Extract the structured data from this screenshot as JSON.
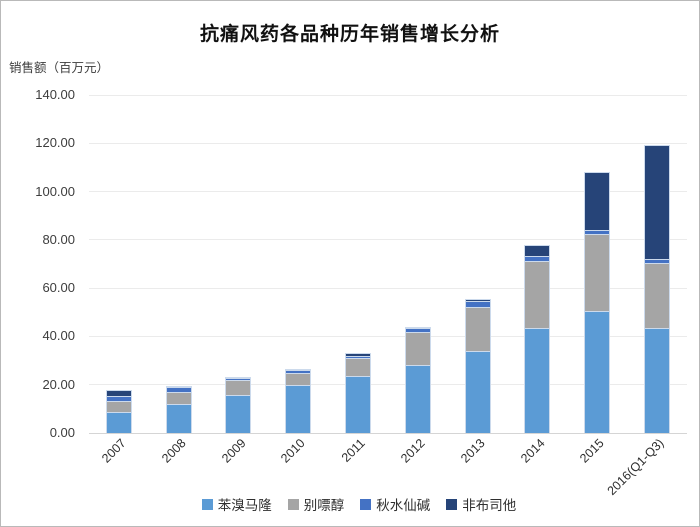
{
  "page": {
    "title": "抗痛风药各品种历年销售增长分析",
    "y_axis_unit_label": "销售额（百万元）"
  },
  "chart_data": {
    "type": "bar",
    "stacked": true,
    "title": "抗痛风药各品种历年销售增长分析",
    "ylabel": "销售额（百万元）",
    "xlabel": "",
    "ylim": [
      0,
      140
    ],
    "grid": true,
    "legend_position": "bottom",
    "yticks": [
      {
        "value": 140,
        "label": "140.00"
      },
      {
        "value": 120,
        "label": "120.00"
      },
      {
        "value": 100,
        "label": "100.00"
      },
      {
        "value": 80,
        "label": "80.00"
      },
      {
        "value": 60,
        "label": "60.00"
      },
      {
        "value": 40,
        "label": "40.00"
      },
      {
        "value": 20,
        "label": "20.00"
      },
      {
        "value": 0,
        "label": "0.00"
      }
    ],
    "categories": [
      "2007",
      "2008",
      "2009",
      "2010",
      "2011",
      "2012",
      "2013",
      "2014",
      "2015",
      "2016(Q1-Q3)"
    ],
    "series": [
      {
        "name": "苯溴马隆",
        "color": "#5B9BD5",
        "values": [
          8.9,
          12.2,
          15.9,
          19.8,
          23.8,
          28.3,
          34.0,
          43.3,
          50.4,
          43.6
        ]
      },
      {
        "name": "别嘌醇",
        "color": "#A5A5A5",
        "values": [
          4.5,
          4.8,
          5.9,
          5.1,
          7.1,
          13.6,
          18.4,
          27.9,
          32.0,
          26.8
        ]
      },
      {
        "name": "秋水仙碱",
        "color": "#4472C4",
        "values": [
          2.0,
          2.0,
          1.1,
          1.4,
          1.1,
          1.6,
          2.2,
          2.0,
          1.8,
          1.8
        ]
      },
      {
        "name": "非布司他",
        "color": "#264478",
        "values": [
          2.4,
          0.5,
          0.2,
          0.2,
          1.0,
          0.3,
          0.8,
          4.5,
          24.1,
          47.3
        ]
      }
    ],
    "totals": [
      17.8,
      19.5,
      23.1,
      26.5,
      33.0,
      43.8,
      55.4,
      77.7,
      108.3,
      119.5
    ]
  }
}
